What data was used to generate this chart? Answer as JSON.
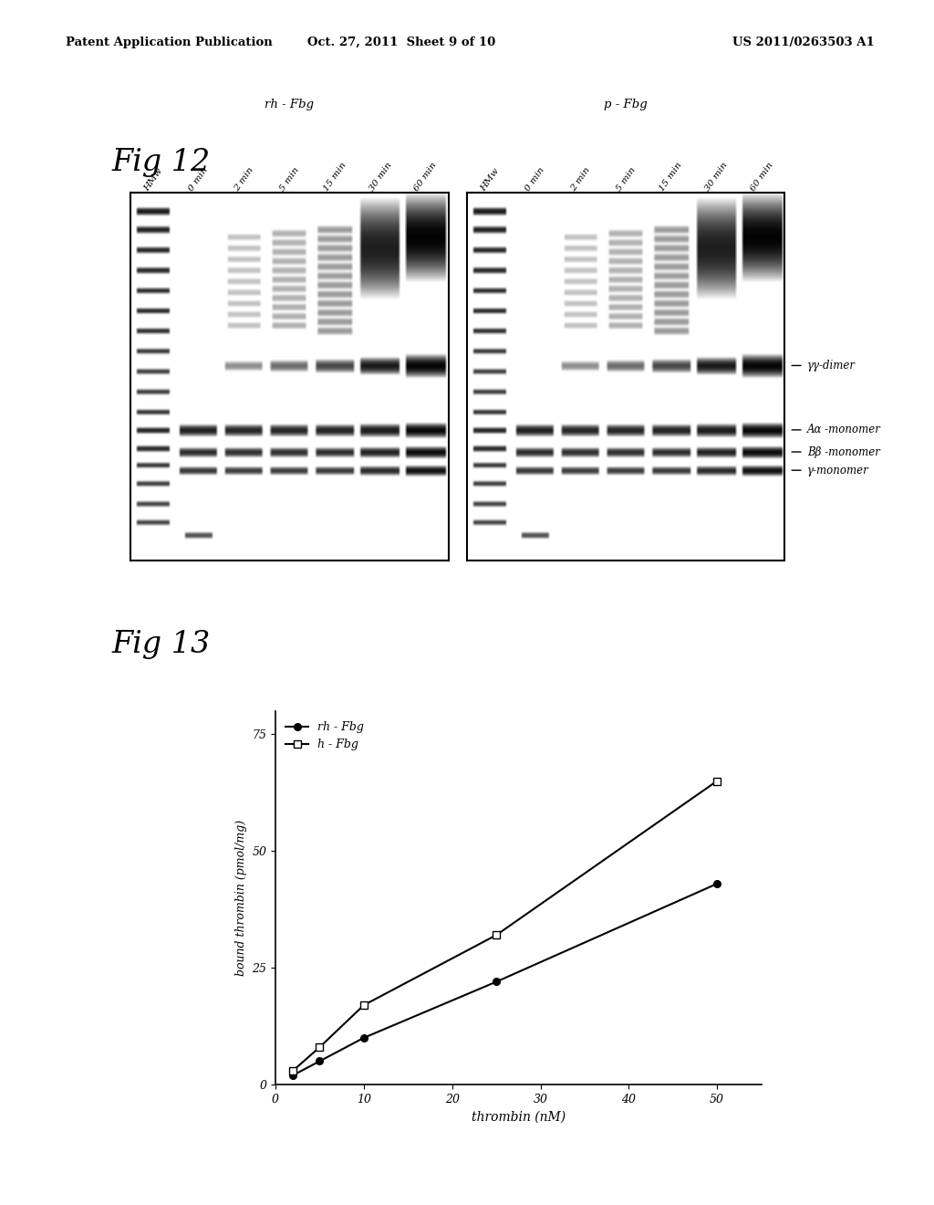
{
  "header_left": "Patent Application Publication",
  "header_center": "Oct. 27, 2011  Sheet 9 of 10",
  "header_right": "US 2011/0263503 A1",
  "fig12_title": "Fig 12",
  "fig13_title": "Fig 13",
  "gel_labels_left": [
    "HMw",
    "0 min",
    "2 min",
    "5 min",
    "15 min",
    "30 min",
    "60 min"
  ],
  "gel_group_left": "rh - Fbg",
  "gel_labels_right": [
    "HMw",
    "0 min",
    "2 min",
    "5 min",
    "15 min",
    "30 min",
    "60 min"
  ],
  "gel_group_right": "p - Fbg",
  "band_labels": [
    "γγ-dimer",
    "Aα -monomer",
    "Bβ -monomer",
    "γ-monomer"
  ],
  "plot_xlabel": "thrombin (nM)",
  "plot_ylabel": "bound thrombin (pmol/mg)",
  "plot_xlim": [
    0,
    55
  ],
  "plot_ylim": [
    0,
    80
  ],
  "plot_xticks": [
    0,
    10,
    20,
    30,
    40,
    50
  ],
  "plot_yticks": [
    0,
    25,
    50,
    75
  ],
  "series1_label": "rh - Fbg",
  "series1_x": [
    2,
    5,
    10,
    25,
    50
  ],
  "series1_y": [
    2,
    5,
    10,
    22,
    43
  ],
  "series2_label": "h - Fbg",
  "series2_x": [
    2,
    5,
    10,
    25,
    50
  ],
  "series2_y": [
    3,
    8,
    17,
    32,
    65
  ],
  "background": "#ffffff",
  "text_color": "#000000"
}
